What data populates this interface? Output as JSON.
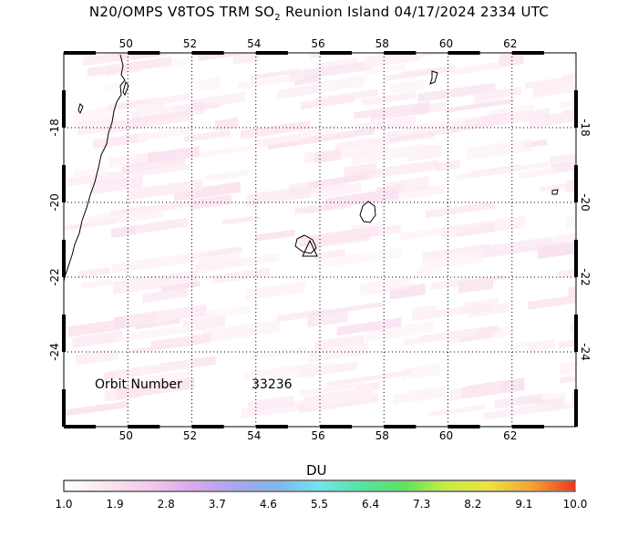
{
  "title": {
    "pre": "N20/OMPS V8TOS TRM SO",
    "sub": "2",
    "post": " Reunion Island 04/17/2024 2334 UTC"
  },
  "map": {
    "lon_range": [
      48,
      64
    ],
    "lat_range": [
      -26,
      -16
    ],
    "lon_ticks": [
      "50",
      "52",
      "54",
      "56",
      "58",
      "60",
      "62"
    ],
    "lat_ticks": [
      "-18",
      "-20",
      "-22",
      "-24"
    ],
    "grid": "dotted",
    "volcano_marker": "triangle"
  },
  "orbit": {
    "label": "Orbit Number",
    "value": "33236"
  },
  "colorbar": {
    "unit": "DU",
    "labels": [
      "1.0",
      "1.9",
      "2.8",
      "3.7",
      "4.6",
      "5.5",
      "6.4",
      "7.3",
      "8.2",
      "9.1",
      "10.0"
    ],
    "colors": [
      "#ffffff",
      "#fbe3ee",
      "#f6c6ec",
      "#d9a8ee",
      "#a8a6ee",
      "#7fb8ee",
      "#6fe6ee",
      "#4fe6a0",
      "#5ee25e",
      "#c6ee3e",
      "#eee23e",
      "#f6a432",
      "#ee3a20"
    ]
  }
}
